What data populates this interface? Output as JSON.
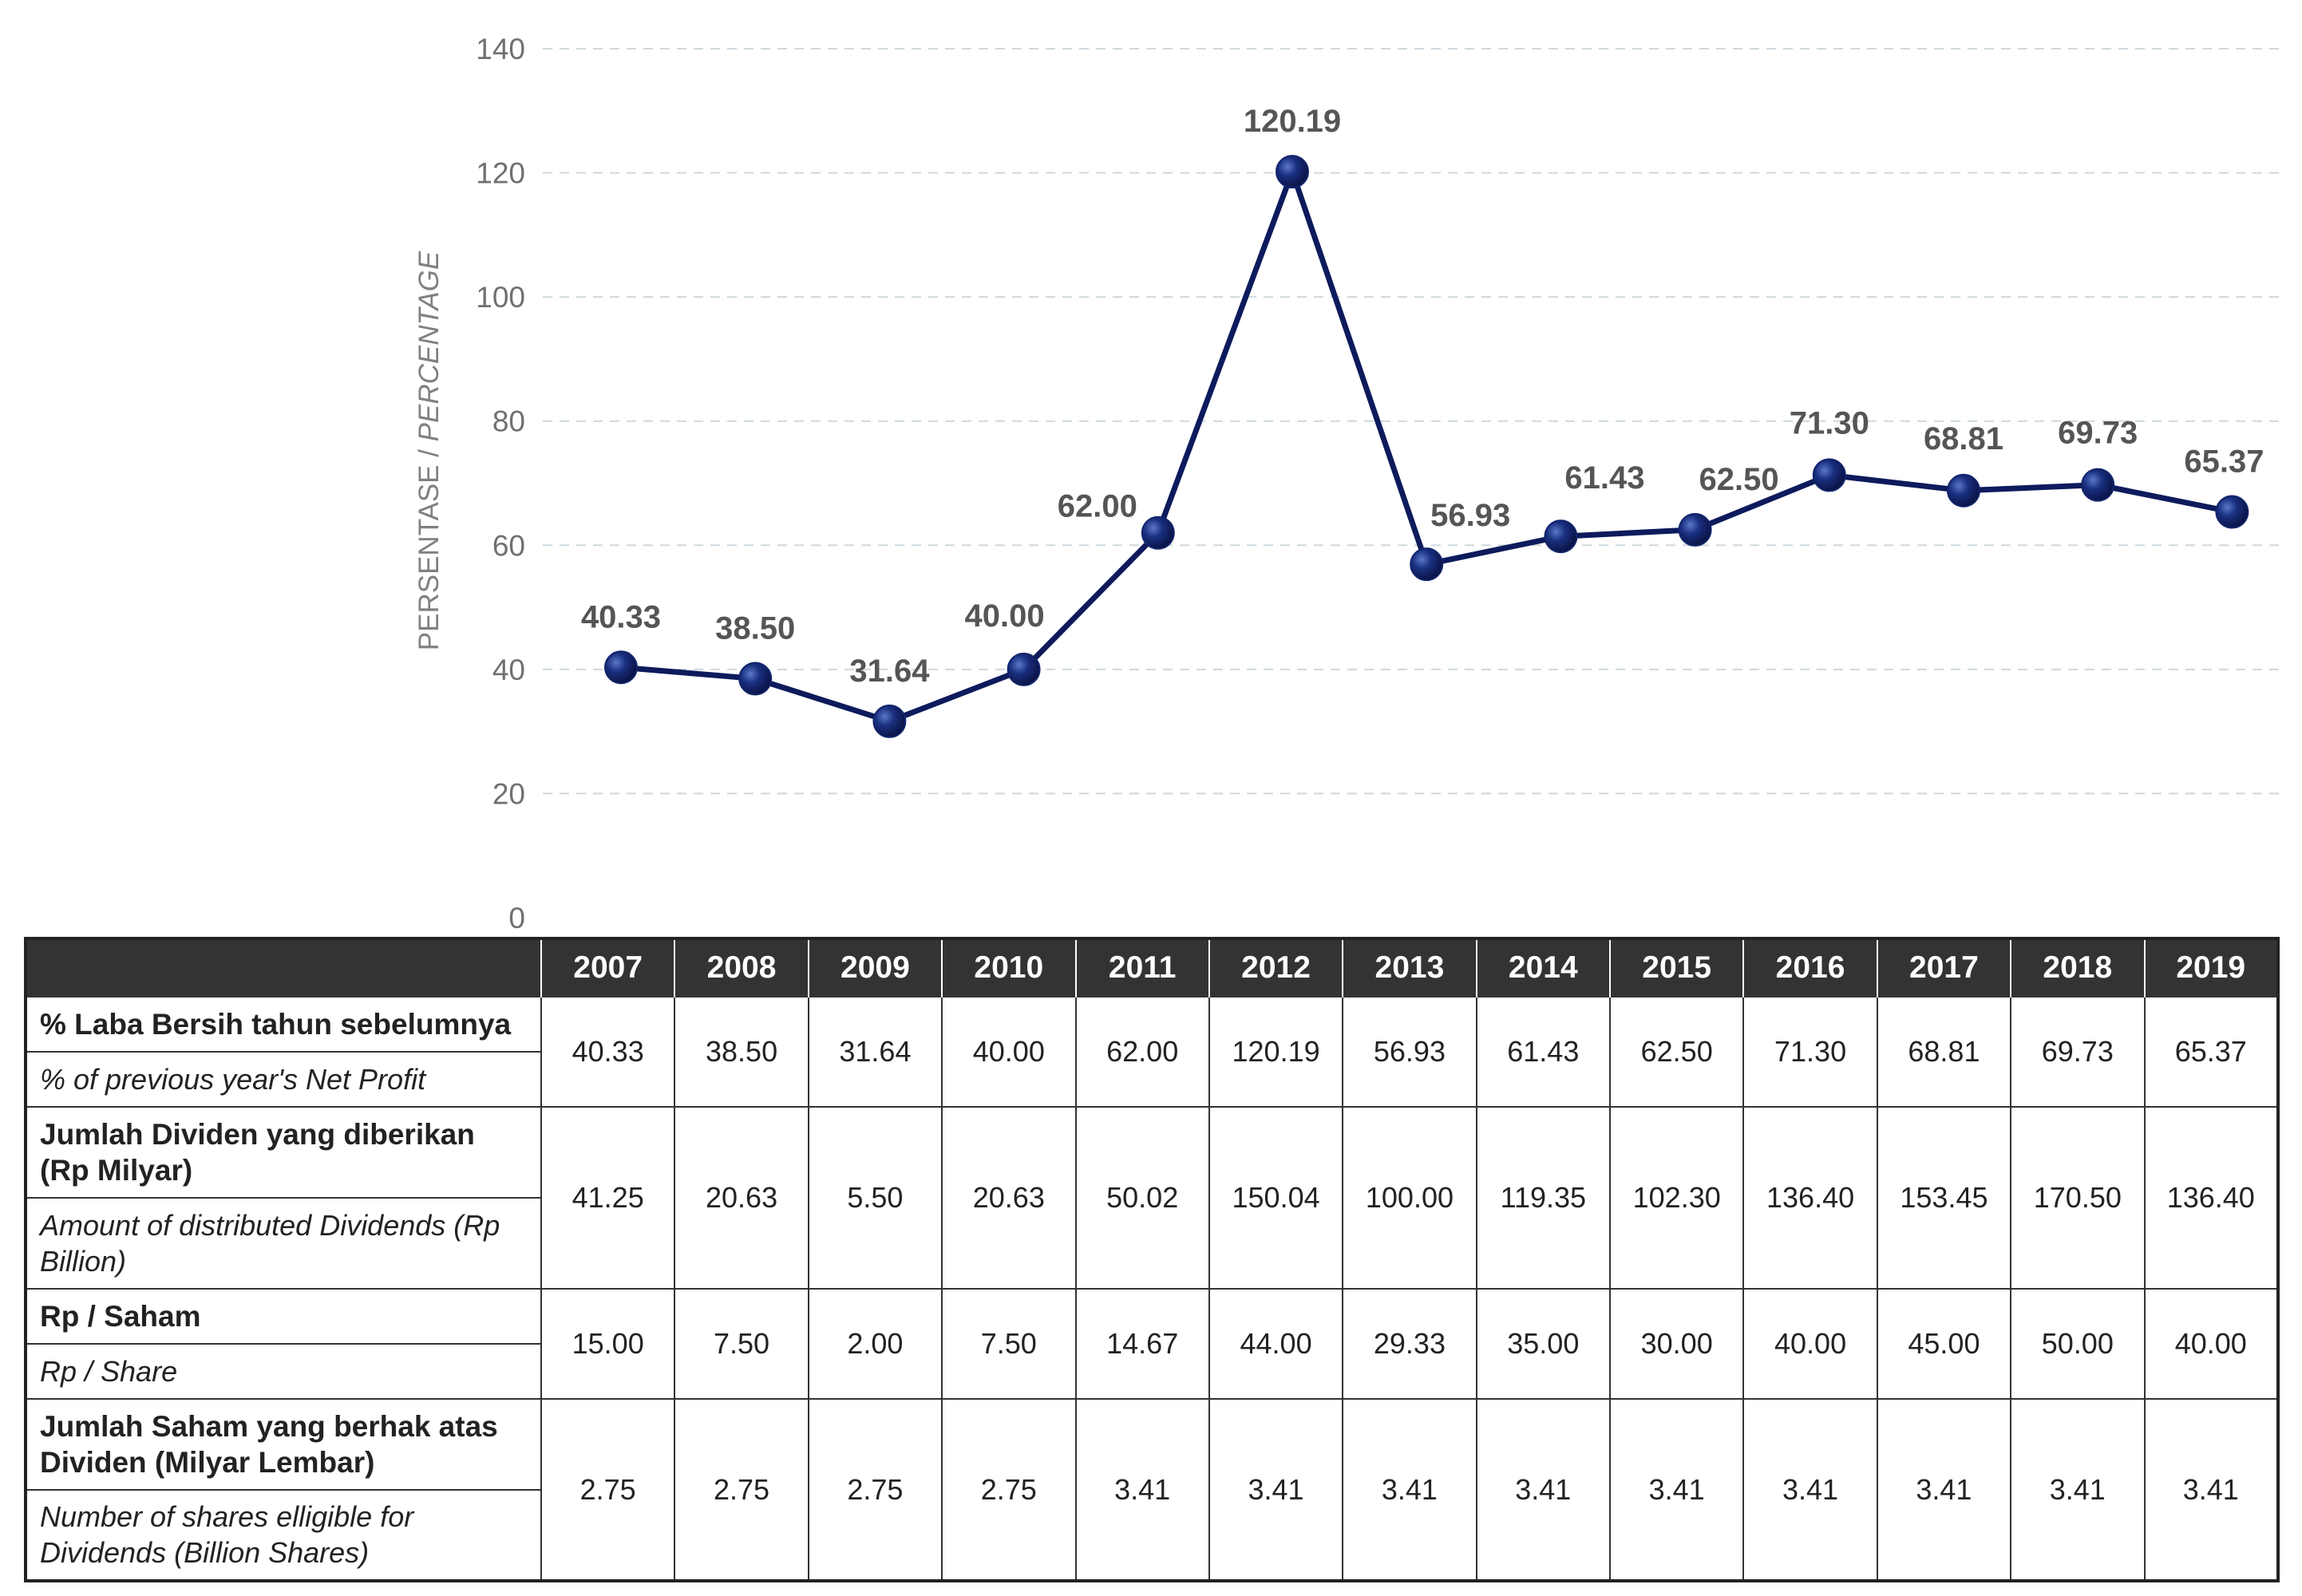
{
  "chart_data": {
    "type": "line",
    "ylabel_id": "PERSENTASE / ",
    "ylabel_en": "PERCENTAGE",
    "ylim": [
      0,
      140
    ],
    "yticks": [
      0,
      20,
      40,
      60,
      80,
      100,
      120,
      140
    ],
    "grid": true,
    "line_color": "#0d1a5c",
    "marker_color": "#12246b",
    "categories": [
      "2007",
      "2008",
      "2009",
      "2010",
      "2011",
      "2012",
      "2013",
      "2014",
      "2015",
      "2016",
      "2017",
      "2018",
      "2019"
    ],
    "values": [
      40.33,
      38.5,
      31.64,
      40.0,
      62.0,
      120.19,
      56.93,
      61.43,
      62.5,
      71.3,
      68.81,
      69.73,
      65.37
    ],
    "value_labels": [
      "40.33",
      "38.50",
      "31.64",
      "40.00",
      "62.00",
      "120.19",
      "56.93",
      "61.43",
      "62.50",
      "71.30",
      "68.81",
      "69.73",
      "65.37"
    ]
  },
  "table": {
    "header_bg": "#333333",
    "years": [
      "2007",
      "2008",
      "2009",
      "2010",
      "2011",
      "2012",
      "2013",
      "2014",
      "2015",
      "2016",
      "2017",
      "2018",
      "2019"
    ],
    "rows": [
      {
        "label_id": "% Laba Bersih tahun sebelumnya",
        "label_en": "% of previous year's Net Profit",
        "values": [
          "40.33",
          "38.50",
          "31.64",
          "40.00",
          "62.00",
          "120.19",
          "56.93",
          "61.43",
          "62.50",
          "71.30",
          "68.81",
          "69.73",
          "65.37"
        ]
      },
      {
        "label_id": "Jumlah Dividen yang diberikan (Rp Milyar)",
        "label_en": "Amount of distributed Dividends (Rp Billion)",
        "values": [
          "41.25",
          "20.63",
          "5.50",
          "20.63",
          "50.02",
          "150.04",
          "100.00",
          "119.35",
          "102.30",
          "136.40",
          "153.45",
          "170.50",
          "136.40"
        ]
      },
      {
        "label_id": "Rp / Saham",
        "label_en": "Rp / Share",
        "values": [
          "15.00",
          "7.50",
          "2.00",
          "7.50",
          "14.67",
          "44.00",
          "29.33",
          "35.00",
          "30.00",
          "40.00",
          "45.00",
          "50.00",
          "40.00"
        ]
      },
      {
        "label_id": "Jumlah Saham yang berhak atas Dividen (Milyar Lembar)",
        "label_en": "Number of shares elligible for Dividends (Billion Shares)",
        "values": [
          "2.75",
          "2.75",
          "2.75",
          "2.75",
          "3.41",
          "3.41",
          "3.41",
          "3.41",
          "3.41",
          "3.41",
          "3.41",
          "3.41",
          "3.41"
        ]
      }
    ]
  }
}
